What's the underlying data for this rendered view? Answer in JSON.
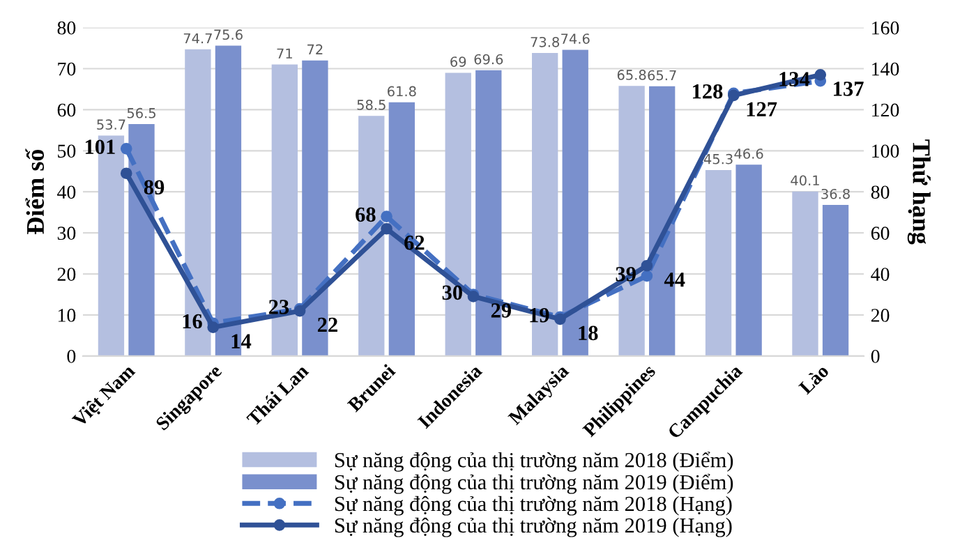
{
  "chart_data": {
    "type": "bar",
    "ylabel": "Điểm số",
    "y2label": "Thứ hạng",
    "categories": [
      "Việt Nam",
      "Singapore",
      "Thái Lan",
      "Brunei",
      "Indonesia",
      "Malaysia",
      "Philippines",
      "Campuchia",
      "Lào"
    ],
    "series": [
      {
        "name": "Sự năng động của thị trường năm 2018 (Điểm)",
        "color": "#b4bfe0",
        "values": [
          53.7,
          74.7,
          71,
          58.5,
          69,
          73.8,
          65.8,
          45.3,
          40.1
        ]
      },
      {
        "name": "Sự năng động của thị trường năm 2019 (Điểm)",
        "color": "#7a90cd",
        "values": [
          56.5,
          75.6,
          72,
          61.8,
          69.6,
          74.6,
          65.7,
          46.6,
          36.8
        ]
      },
      {
        "name": "Sự năng động của thị trường năm 2018 (Hạng)",
        "type": "line",
        "axis": "y2",
        "color": "#4470c2",
        "line_style": "dashed",
        "marker": "circle",
        "values": [
          101,
          16,
          23,
          68,
          30,
          19,
          39,
          128,
          134
        ]
      },
      {
        "name": "Sự năng động của thị trường năm 2019 (Hạng)",
        "type": "line",
        "axis": "y2",
        "color": "#2f5196",
        "line_style": "solid",
        "marker": "circle",
        "values": [
          89,
          14,
          22,
          62,
          29,
          18,
          44,
          127,
          137
        ]
      }
    ],
    "ylim": [
      0,
      80
    ],
    "yticks": [
      0,
      10,
      20,
      30,
      40,
      50,
      60,
      70,
      80
    ],
    "y2lim": [
      0,
      160
    ],
    "y2ticks": [
      0,
      20,
      40,
      60,
      80,
      100,
      120,
      140,
      160
    ],
    "grid": "y",
    "legend": "bottom",
    "data_labels": true
  }
}
